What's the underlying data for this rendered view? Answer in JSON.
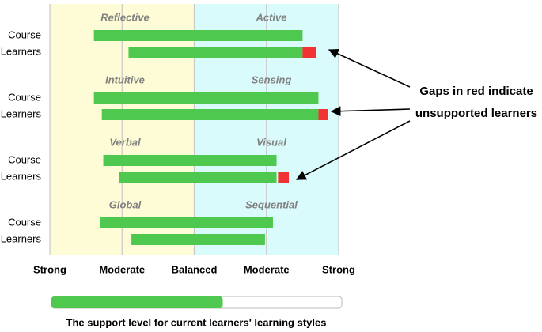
{
  "chart_data": {
    "type": "range_bar",
    "xlim": [
      -2,
      2
    ],
    "xticks": [
      {
        "value": -2,
        "label": "Strong"
      },
      {
        "value": -1,
        "label": "Moderate"
      },
      {
        "value": 0,
        "label": "Balanced"
      },
      {
        "value": 1,
        "label": "Moderate"
      },
      {
        "value": 2,
        "label": "Strong"
      }
    ],
    "grid": true,
    "row_labels": [
      "Course",
      "Learners"
    ],
    "course_color": "#4ec84e",
    "learner_color": "#4ec84e",
    "gap_color": "#f23333",
    "groups": [
      {
        "left_label": "Reflective",
        "right_label": "Active",
        "course": [
          -1.39,
          1.5
        ],
        "learners": [
          -0.91,
          1.5
        ],
        "gap": [
          1.5,
          1.69
        ]
      },
      {
        "left_label": "Intuitive",
        "right_label": "Sensing",
        "course": [
          -1.39,
          1.72
        ],
        "learners": [
          -1.28,
          1.72
        ],
        "gap": [
          1.72,
          1.85
        ]
      },
      {
        "left_label": "Verbal",
        "right_label": "Visual",
        "course": [
          -1.26,
          1.14
        ],
        "learners": [
          -1.04,
          1.14
        ],
        "gap": [
          1.16,
          1.31
        ]
      },
      {
        "left_label": "Global",
        "right_label": "Sequential",
        "course": [
          -1.3,
          1.09
        ],
        "learners": [
          -0.87,
          0.98
        ],
        "gap": null
      }
    ],
    "annotation": [
      "Gaps in red indicate",
      "unsupported learners"
    ],
    "progress": {
      "value": 59,
      "max": 100,
      "label": "The support level for current learners' learning styles"
    }
  }
}
